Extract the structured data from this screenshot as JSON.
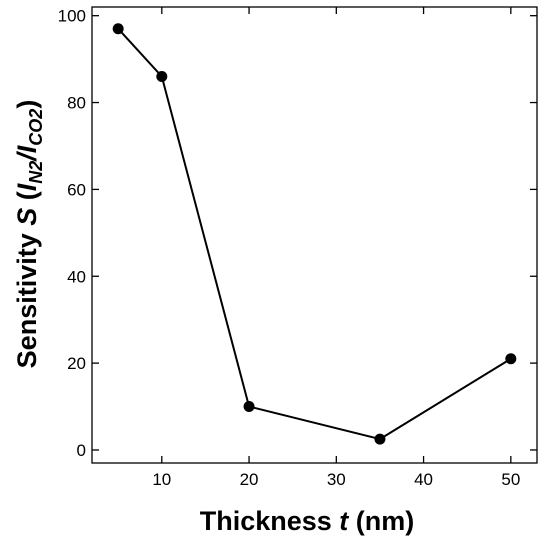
{
  "chart_data": {
    "type": "line",
    "title": "",
    "xlabel": {
      "prefix": "Thickness ",
      "variable": "t",
      "unit": " (nm)"
    },
    "ylabel": {
      "prefix": "Sensitivity ",
      "variable": "S",
      "open": " (",
      "num_symbol": "I",
      "num_sub": "N2",
      "slash": "/",
      "den_symbol": "I",
      "den_sub": "CO2",
      "close": ")"
    },
    "xlim": [
      2,
      53
    ],
    "ylim": [
      -3,
      102
    ],
    "xticks": [
      10,
      20,
      30,
      40,
      50
    ],
    "yticks": [
      0,
      20,
      40,
      60,
      80,
      100
    ],
    "grid": false,
    "legend": "none",
    "series": [
      {
        "x": [
          5,
          10,
          20,
          35,
          50
        ],
        "y": [
          97,
          86,
          10,
          2.5,
          21
        ],
        "color": "#000000",
        "marker": "circle"
      }
    ]
  }
}
